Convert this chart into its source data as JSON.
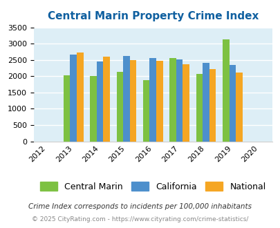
{
  "title": "Central Marin Property Crime Index",
  "years": [
    2012,
    2013,
    2014,
    2015,
    2016,
    2017,
    2018,
    2019,
    2020
  ],
  "bar_years": [
    2013,
    2014,
    2015,
    2016,
    2017,
    2018,
    2019
  ],
  "central_marin": [
    2030,
    2000,
    2140,
    1870,
    2560,
    2070,
    3140
  ],
  "california": [
    2660,
    2450,
    2620,
    2560,
    2510,
    2400,
    2350
  ],
  "national": [
    2720,
    2600,
    2500,
    2470,
    2370,
    2210,
    2120
  ],
  "color_marin": "#7dc142",
  "color_california": "#4d8fcc",
  "color_national": "#f5a623",
  "bg_color": "#ddeef6",
  "ylim": [
    0,
    3500
  ],
  "yticks": [
    0,
    500,
    1000,
    1500,
    2000,
    2500,
    3000,
    3500
  ],
  "xlabel": "",
  "ylabel": "",
  "legend_labels": [
    "Central Marin",
    "California",
    "National"
  ],
  "footnote1": "Crime Index corresponds to incidents per 100,000 inhabitants",
  "footnote2": "© 2025 CityRating.com - https://www.cityrating.com/crime-statistics/",
  "title_color": "#1060a0",
  "footnote1_color": "#333333",
  "footnote2_color": "#888888"
}
